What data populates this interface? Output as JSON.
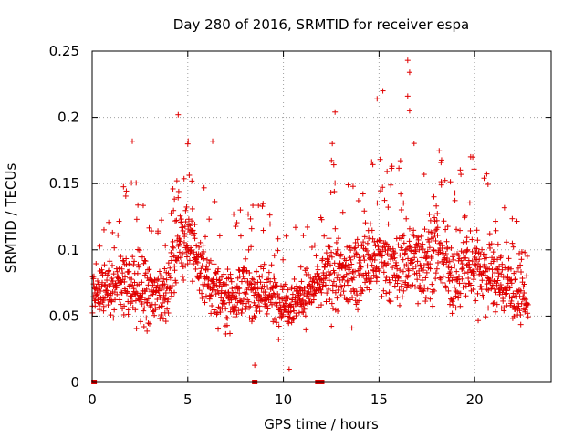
{
  "chart_data": {
    "type": "scatter",
    "title": "Day 280 of 2016, SRMTID for receiver espa",
    "xlabel": "GPS time / hours",
    "ylabel": "SRMTID / TECUs",
    "xlim": [
      0,
      24
    ],
    "ylim": [
      0,
      0.25
    ],
    "xticks": [
      0,
      5,
      10,
      15,
      20
    ],
    "xtick_labels": [
      "0",
      "5",
      "10",
      "15",
      "20"
    ],
    "yticks": [
      0,
      0.05,
      0.1,
      0.15,
      0.2,
      0.25
    ],
    "ytick_labels": [
      "0",
      "0.05",
      "0.1",
      "0.15",
      "0.2",
      "0.25"
    ],
    "grid": true,
    "marker": "+",
    "color": "#e00000",
    "series": [
      {
        "name": "SRMTID",
        "note": "representative sample of the dense point cloud read from the plot",
        "envelope": {
          "x": [
            0,
            1,
            2,
            3,
            4,
            4.5,
            5,
            6,
            7,
            8,
            9,
            10,
            11,
            12,
            12.5,
            13,
            14,
            14.8,
            15,
            16,
            16.5,
            17,
            18,
            19,
            19.9,
            21,
            22,
            22.8
          ],
          "median": [
            0.068,
            0.07,
            0.075,
            0.065,
            0.07,
            0.11,
            0.11,
            0.075,
            0.065,
            0.07,
            0.07,
            0.06,
            0.065,
            0.075,
            0.085,
            0.08,
            0.085,
            0.095,
            0.09,
            0.085,
            0.095,
            0.09,
            0.1,
            0.08,
            0.09,
            0.08,
            0.07,
            0.06
          ],
          "spread": [
            0.025,
            0.025,
            0.04,
            0.03,
            0.025,
            0.04,
            0.035,
            0.03,
            0.03,
            0.03,
            0.03,
            0.025,
            0.025,
            0.025,
            0.045,
            0.035,
            0.035,
            0.04,
            0.04,
            0.035,
            0.05,
            0.04,
            0.04,
            0.035,
            0.04,
            0.035,
            0.03,
            0.025
          ]
        },
        "outliers": [
          {
            "x": 2.1,
            "y": 0.182
          },
          {
            "x": 4.5,
            "y": 0.202
          },
          {
            "x": 5.0,
            "y": 0.18
          },
          {
            "x": 6.3,
            "y": 0.182
          },
          {
            "x": 12.7,
            "y": 0.204
          },
          {
            "x": 14.9,
            "y": 0.214
          },
          {
            "x": 15.2,
            "y": 0.22
          },
          {
            "x": 16.5,
            "y": 0.243
          },
          {
            "x": 16.6,
            "y": 0.234
          },
          {
            "x": 16.5,
            "y": 0.216
          },
          {
            "x": 16.6,
            "y": 0.205
          },
          {
            "x": 19.9,
            "y": 0.17
          },
          {
            "x": 8.5,
            "y": 0.013
          },
          {
            "x": 10.3,
            "y": 0.01
          }
        ],
        "zero_points": [
          0.1,
          8.5,
          11.8,
          12.0
        ]
      }
    ]
  }
}
